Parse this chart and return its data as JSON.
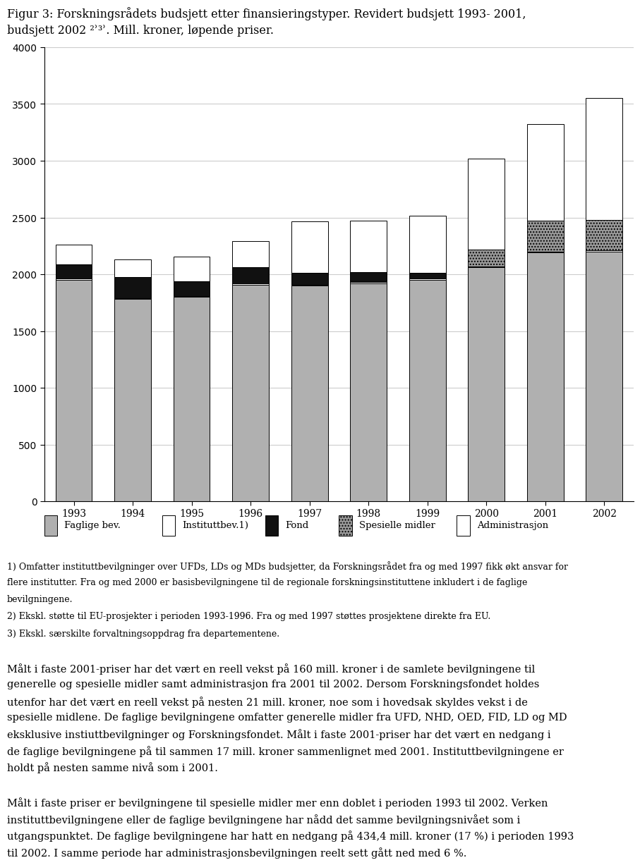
{
  "years": [
    1993,
    1994,
    1995,
    1996,
    1997,
    1998,
    1999,
    2000,
    2001,
    2002
  ],
  "faglige_bev": [
    1950,
    1780,
    1800,
    1910,
    1900,
    1920,
    1950,
    2060,
    2190,
    2200
  ],
  "instituttbev": [
    10,
    10,
    10,
    10,
    10,
    10,
    10,
    10,
    10,
    10
  ],
  "fond": [
    130,
    185,
    125,
    145,
    105,
    90,
    55,
    0,
    0,
    0
  ],
  "spesielle_midler": [
    0,
    0,
    0,
    0,
    0,
    0,
    0,
    150,
    270,
    270
  ],
  "administrasjon": [
    170,
    155,
    220,
    230,
    450,
    450,
    500,
    800,
    850,
    1070
  ],
  "title_line1": "Figur 3: Forskningsrådets budsjett etter finansieringstyper. Revidert budsjett 1993- 2001,",
  "title_line2": "budsjett 2002 ²ʾ³ʾ. Mill. kroner, løpende priser.",
  "ylim": [
    0,
    4000
  ],
  "yticks": [
    0,
    500,
    1000,
    1500,
    2000,
    2500,
    3000,
    3500,
    4000
  ],
  "legend_labels": [
    "Faglige bev.",
    "Instituttbev.1)",
    "Fond",
    "Spesielle midler",
    "Administrasjon"
  ],
  "colors": {
    "faglige_bev": "#b0b0b0",
    "instituttbev": "#ffffff",
    "fond": "#111111",
    "spesielle_midler": "#999999",
    "administrasjon": "#ffffff"
  },
  "footnote1": "1) Omfatter instituttbevilgninger over UFDs, LDs og MDs budsjetter, da Forskningsrådet fra og med 1997 fikk økt ansvar for",
  "footnote2": "flere institutter. Fra og med 2000 er basisbevilgningene til de regionale forskningsinstituttene inkludert i de faglige",
  "footnote3": "bevilgningene.",
  "footnote4": "2) Ekskl. støtte til EU-prosjekter i perioden 1993-1996. Fra og med 1997 støttes prosjektene direkte fra EU.",
  "footnote5": "3) Ekskl. særskilte forvaltningsoppdrag fra departementene.",
  "para1": "Målt i faste 2001-priser har det vært en reell vekst på 160 mill. kroner i de samlete bevilgningene til generelle og spesielle midler samt administrasjon fra 2001 til 2002. Dersom Forskningsfondet holdes utenfor har det vært en reell vekst på nesten 21 mill. kroner, noe som i hovedsak skyldes vekst i de spesielle midlene. De faglige bevilgningene omfatter generelle midler fra UFD, NHD, OED, FID, LD og MD eksklusive instiuttbevilgninger og Forskningsfondet. Målt i faste 2001-priser har det vært en nedgang i de faglige bevilgningene på til sammen 17 mill. kroner sammenlignet med 2001. Instituttbevilgningene er holdt på nesten samme nivå som i 2001.",
  "para2": "Målt i faste priser er bevilgningene til spesielle midler mer enn doblet i perioden 1993 til 2002. Verken instituttbevilgningene eller de faglige bevilgningene har nådd det samme bevilgningsnivået som i utgangspunktet. De faglige bevilgningene har hatt en nedgang på 434,4 mill. kroner (17 %) i perioden 1993 til 2002. I samme periode har administrasjonsbevilgningen reelt sett gått ned med 6 %."
}
